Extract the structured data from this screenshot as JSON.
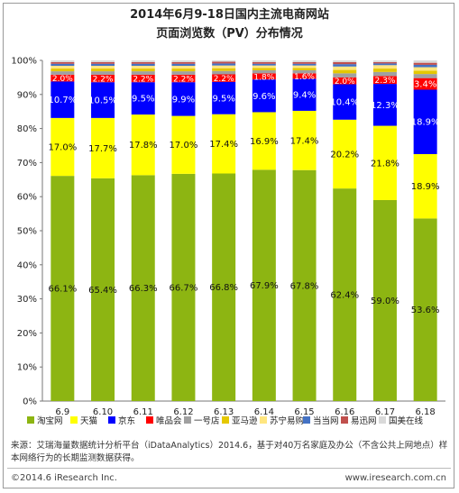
{
  "title_line1": "2014年6月9-18日国内主流电商网站",
  "title_line2": "页面浏览数（PV）分布情况",
  "source": "来源：艾瑞海量数据统计分析平台（iDataAnalytics）2014.6，基于对40万名家庭及办公（不含公共上网地点）样本网络行为的长期监测数据获得。",
  "copyright": "©2014.6 iResearch Inc.",
  "website": "www.iresearch.com.cn",
  "chart_data": {
    "type": "bar",
    "stacked": true,
    "categories": [
      "6.9",
      "6.10",
      "6.11",
      "6.12",
      "6.13",
      "6.14",
      "6.15",
      "6.16",
      "6.17",
      "6.18"
    ],
    "ylim": [
      0,
      100
    ],
    "yticks": [
      "0%",
      "10%",
      "20%",
      "30%",
      "40%",
      "50%",
      "60%",
      "70%",
      "80%",
      "90%",
      "100%"
    ],
    "legend_position": "bottom",
    "series": [
      {
        "name": "淘宝网",
        "color": "#8db512",
        "values": [
          66.1,
          65.4,
          66.3,
          66.7,
          66.8,
          67.9,
          67.8,
          62.4,
          59.0,
          53.6
        ],
        "labels": [
          "66.1%",
          "65.4%",
          "66.3%",
          "66.7%",
          "66.8%",
          "67.9%",
          "67.8%",
          "62.4%",
          "59.0%",
          "53.6%"
        ]
      },
      {
        "name": "天猫",
        "color": "#ffff00",
        "values": [
          17.0,
          17.7,
          17.8,
          17.0,
          17.4,
          16.9,
          17.4,
          20.2,
          21.8,
          18.9
        ],
        "labels": [
          "17.0%",
          "17.7%",
          "17.8%",
          "17.0%",
          "17.4%",
          "16.9%",
          "17.4%",
          "20.2%",
          "21.8%",
          "18.9%"
        ]
      },
      {
        "name": "京东",
        "color": "#0000ff",
        "values": [
          10.7,
          10.5,
          9.5,
          9.9,
          9.5,
          9.6,
          9.4,
          10.4,
          12.3,
          18.9
        ],
        "labels": [
          "10.7%",
          "10.5%",
          "9.5%",
          "9.9%",
          "9.5%",
          "9.6%",
          "9.4%",
          "10.4%",
          "12.3%",
          "18.9%"
        ]
      },
      {
        "name": "唯品会",
        "color": "#ff0000",
        "values": [
          2.0,
          2.2,
          2.2,
          2.2,
          2.2,
          1.8,
          1.6,
          2.0,
          2.3,
          3.4
        ],
        "labels": [
          "2.0%",
          "2.2%",
          "2.2%",
          "2.2%",
          "2.2%",
          "1.8%",
          "1.6%",
          "2.0%",
          "2.3%",
          "3.4%"
        ]
      },
      {
        "name": "一号店",
        "color": "#a0a0a0",
        "values": [
          1.0,
          1.0,
          1.0,
          1.0,
          1.0,
          0.9,
          0.9,
          1.2,
          1.2,
          1.2
        ]
      },
      {
        "name": "亚马逊",
        "color": "#e5c800",
        "values": [
          0.8,
          0.8,
          0.8,
          0.8,
          0.8,
          0.7,
          0.7,
          1.0,
          1.0,
          1.0
        ]
      },
      {
        "name": "苏宁易购",
        "color": "#ffe680",
        "values": [
          0.8,
          0.8,
          0.8,
          0.8,
          0.8,
          0.7,
          0.7,
          1.0,
          1.0,
          1.0
        ]
      },
      {
        "name": "当当网",
        "color": "#4472c4",
        "values": [
          0.6,
          0.6,
          0.6,
          0.6,
          0.6,
          0.5,
          0.5,
          0.7,
          0.5,
          0.7
        ]
      },
      {
        "name": "易迅网",
        "color": "#c0504d",
        "values": [
          0.5,
          0.5,
          0.5,
          0.5,
          0.5,
          0.5,
          0.5,
          0.6,
          0.4,
          0.6
        ]
      },
      {
        "name": "国美在线",
        "color": "#d9d9d9",
        "values": [
          0.5,
          0.5,
          0.5,
          0.5,
          0.4,
          0.5,
          0.5,
          0.5,
          0.5,
          0.7
        ]
      }
    ]
  }
}
